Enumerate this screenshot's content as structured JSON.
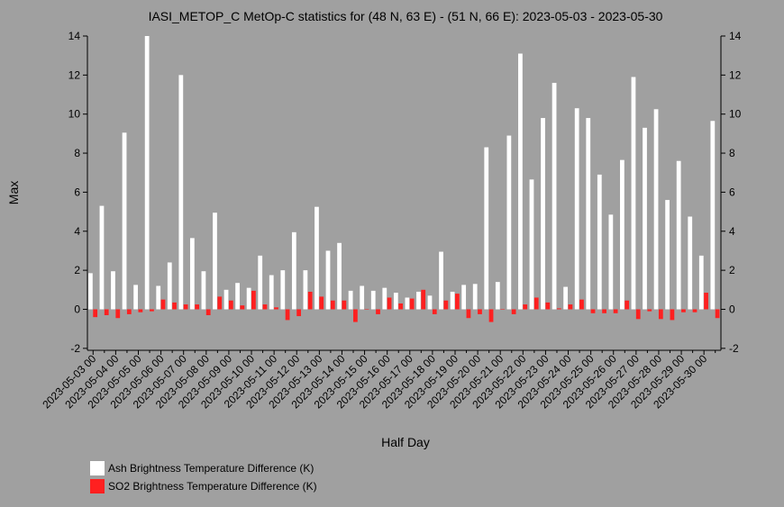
{
  "chart_data": {
    "type": "bar",
    "title": "IASI_METOP_C MetOp-C statistics for (48 N, 63 E) - (51 N, 66 E): 2023-05-03 - 2023-05-30",
    "x_label": "Half Day",
    "y_label": "Max",
    "categories": [
      "2023-05-03 00",
      null,
      "2023-05-04 00",
      null,
      "2023-05-05 00",
      null,
      "2023-05-06 00",
      null,
      "2023-05-07 00",
      null,
      "2023-05-08 00",
      null,
      "2023-05-09 00",
      null,
      "2023-05-10 00",
      null,
      "2023-05-11 00",
      null,
      "2023-05-12 00",
      null,
      "2023-05-13 00",
      null,
      "2023-05-14 00",
      null,
      "2023-05-15 00",
      null,
      "2023-05-16 00",
      null,
      "2023-05-17 00",
      null,
      "2023-05-18 00",
      null,
      "2023-05-19 00",
      null,
      "2023-05-20 00",
      null,
      "2023-05-21 00",
      null,
      "2023-05-22 00",
      null,
      "2023-05-23 00",
      null,
      "2023-05-24 00",
      null,
      "2023-05-25 00",
      null,
      "2023-05-26 00",
      null,
      "2023-05-27 00",
      null,
      "2023-05-28 00",
      null,
      "2023-05-29 00",
      null,
      "2023-05-30 00",
      null
    ],
    "series": [
      {
        "name": "Ash Brightness Temperature Difference (K)",
        "color": "#ffffff",
        "values": [
          1.85,
          5.3,
          1.95,
          9.05,
          1.25,
          14.0,
          1.2,
          2.4,
          12.0,
          3.65,
          1.95,
          4.95,
          1.0,
          1.35,
          1.1,
          2.75,
          1.75,
          2.0,
          3.95,
          2.0,
          5.25,
          3.0,
          3.4,
          0.95,
          1.2,
          0.95,
          1.1,
          0.85,
          0.6,
          0.9,
          0.7,
          2.95,
          0.9,
          1.25,
          1.3,
          8.3,
          1.4,
          8.9,
          13.1,
          6.65,
          9.8,
          11.6,
          1.15,
          10.3,
          9.8,
          6.9,
          4.85,
          7.65,
          11.9,
          9.3,
          10.25,
          5.6,
          7.6,
          4.75,
          2.75,
          9.65
        ]
      },
      {
        "name": "SO2 Brightness Temperature Difference (K)",
        "color": "#ff2020",
        "values": [
          -0.4,
          -0.3,
          -0.45,
          -0.25,
          -0.15,
          -0.1,
          0.5,
          0.35,
          0.25,
          0.25,
          -0.3,
          0.65,
          0.45,
          0.2,
          0.95,
          0.25,
          0.1,
          -0.55,
          -0.35,
          0.9,
          0.65,
          0.45,
          0.45,
          -0.65,
          0.0,
          -0.25,
          0.6,
          0.3,
          0.55,
          1.0,
          -0.25,
          0.45,
          0.8,
          -0.45,
          -0.25,
          -0.65,
          0.0,
          -0.25,
          0.25,
          0.6,
          0.35,
          0.05,
          0.25,
          0.5,
          -0.2,
          -0.2,
          -0.2,
          0.45,
          -0.5,
          -0.1,
          -0.5,
          -0.55,
          -0.15,
          -0.15,
          0.85,
          -0.45
        ]
      }
    ],
    "ylim": [
      -2.1,
      14
    ],
    "yticks": [
      -2,
      0,
      2,
      4,
      6,
      8,
      10,
      12,
      14
    ],
    "background": "#a0a0a0"
  }
}
